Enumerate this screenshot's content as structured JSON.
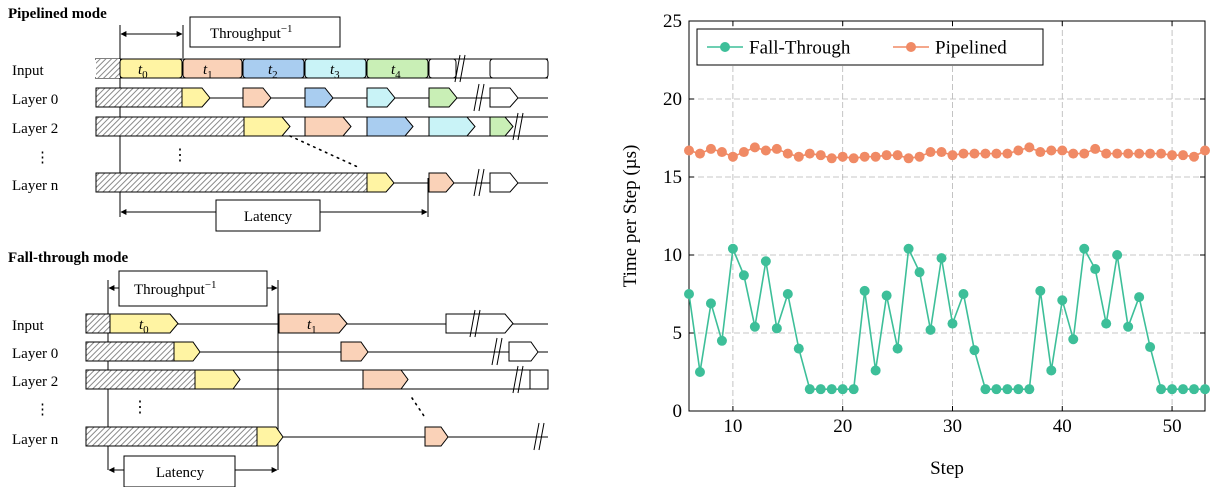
{
  "diagram": {
    "pipelined": {
      "title": "Pipelined mode",
      "throughput_label": "Throughput",
      "throughput_exp": "−1",
      "latency_label": "Latency",
      "rows": [
        "Input",
        "Layer 0",
        "Layer 2",
        "⋮",
        "Layer n"
      ],
      "tasks": [
        "t",
        "t",
        "t",
        "t",
        "t"
      ],
      "task_subs": [
        "0",
        "1",
        "2",
        "3",
        "4"
      ]
    },
    "fallthrough": {
      "title": "Fall-through mode",
      "throughput_label": "Throughput",
      "throughput_exp": "−1",
      "latency_label": "Latency",
      "rows": [
        "Input",
        "Layer 0",
        "Layer 2",
        "⋮",
        "Layer n"
      ],
      "tasks": [
        "t",
        "t"
      ],
      "task_subs": [
        "0",
        "1"
      ]
    },
    "dots": "⋮",
    "colors": {
      "t0": "#fff4a3",
      "t1": "#fad2b8",
      "t2": "#a9cdf0",
      "t3": "#c9f3f7",
      "t4": "#c9efb6",
      "hatch": "#9a9a9a"
    }
  },
  "chart_data": {
    "type": "line",
    "title": "",
    "xlabel": "Step",
    "ylabel": "Time per Step (µs)",
    "xlim": [
      6,
      53
    ],
    "ylim": [
      0,
      25
    ],
    "xticks": [
      10,
      20,
      30,
      40,
      50
    ],
    "yticks": [
      0,
      5,
      10,
      15,
      20,
      25
    ],
    "grid": true,
    "legend_position": "top-left",
    "x": [
      6,
      7,
      8,
      9,
      10,
      11,
      12,
      13,
      14,
      15,
      16,
      17,
      18,
      19,
      20,
      21,
      22,
      23,
      24,
      25,
      26,
      27,
      28,
      29,
      30,
      31,
      32,
      33,
      34,
      35,
      36,
      37,
      38,
      39,
      40,
      41,
      42,
      43,
      44,
      45,
      46,
      47,
      48,
      49,
      50,
      51,
      52,
      53
    ],
    "series": [
      {
        "name": "Fall-Through",
        "color": "#3dbf99",
        "values": [
          7.5,
          2.5,
          6.9,
          4.5,
          10.4,
          8.7,
          5.4,
          9.6,
          5.3,
          7.5,
          4.0,
          1.4,
          1.4,
          1.4,
          1.4,
          1.4,
          7.7,
          2.6,
          7.4,
          4.0,
          10.4,
          8.9,
          5.2,
          9.8,
          5.6,
          7.5,
          3.9,
          1.4,
          1.4,
          1.4,
          1.4,
          1.4,
          7.7,
          2.6,
          7.1,
          4.6,
          10.4,
          9.1,
          5.6,
          10.0,
          5.4,
          7.3,
          4.1,
          1.4,
          1.4,
          1.4,
          1.4,
          1.4
        ]
      },
      {
        "name": "Pipelined",
        "color": "#f08a65",
        "values": [
          16.7,
          16.5,
          16.8,
          16.6,
          16.3,
          16.6,
          16.9,
          16.7,
          16.8,
          16.5,
          16.3,
          16.5,
          16.4,
          16.2,
          16.3,
          16.2,
          16.3,
          16.3,
          16.4,
          16.4,
          16.2,
          16.3,
          16.6,
          16.6,
          16.4,
          16.5,
          16.5,
          16.5,
          16.5,
          16.5,
          16.7,
          16.9,
          16.6,
          16.7,
          16.7,
          16.5,
          16.5,
          16.8,
          16.5,
          16.5,
          16.5,
          16.5,
          16.5,
          16.5,
          16.4,
          16.4,
          16.3,
          16.7
        ]
      }
    ]
  }
}
